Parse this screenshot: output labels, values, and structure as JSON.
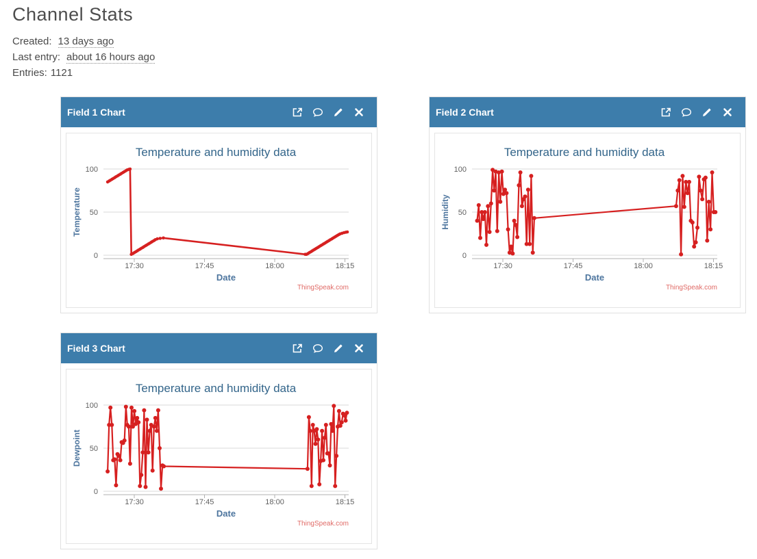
{
  "page": {
    "title": "Channel Stats",
    "created_label": "Created:",
    "created_value": "13 days ago",
    "last_entry_label": "Last entry:",
    "last_entry_value": "about 16 hours ago",
    "entries_label": "Entries:",
    "entries_value": "1121"
  },
  "panels": [
    {
      "title": "Field 1 Chart"
    },
    {
      "title": "Field 2 Chart"
    },
    {
      "title": "Field 3 Chart"
    }
  ],
  "toolbar_icon_names": [
    "external-link",
    "comment",
    "edit",
    "close"
  ],
  "chart_colors": {
    "header_blue": "#3d7dab",
    "title": "#33658a",
    "axis_title": "#4d759e",
    "tick_label": "#606060",
    "grid": "#d8d8d8",
    "axis_line": "#b0b0b0",
    "watermark": "#e06a66",
    "series": "#d62020"
  },
  "chart_data": [
    {
      "type": "line",
      "title": "Temperature and humidity data",
      "xlabel": "Date",
      "ylabel": "Temperature",
      "watermark": "ThingSpeak.com",
      "legend": false,
      "grid": true,
      "x_unit": "minutes after 17:20",
      "xlim": [
        3.4,
        55.8
      ],
      "ylim": [
        0,
        100
      ],
      "yticks": [
        0,
        50,
        100
      ],
      "xticks": [
        [
          10,
          "17:30"
        ],
        [
          25,
          "17:45"
        ],
        [
          40,
          "18:00"
        ],
        [
          55,
          "18:15"
        ]
      ],
      "color": "#d62020",
      "line_width": 2.6,
      "marker_radius": 2.3,
      "points": [
        [
          4.3,
          85
        ],
        [
          4.6,
          86
        ],
        [
          4.9,
          87
        ],
        [
          5.2,
          88
        ],
        [
          5.5,
          89
        ],
        [
          5.8,
          90
        ],
        [
          6.1,
          91
        ],
        [
          6.4,
          92
        ],
        [
          6.7,
          93
        ],
        [
          7.0,
          94
        ],
        [
          7.3,
          95
        ],
        [
          7.6,
          96
        ],
        [
          7.9,
          97
        ],
        [
          8.2,
          98
        ],
        [
          8.5,
          99
        ],
        [
          8.8,
          99.5
        ],
        [
          9.1,
          100
        ],
        [
          9.35,
          1
        ],
        [
          9.7,
          2
        ],
        [
          10.0,
          3
        ],
        [
          10.3,
          4
        ],
        [
          10.6,
          5
        ],
        [
          10.9,
          6
        ],
        [
          11.2,
          7
        ],
        [
          11.5,
          8
        ],
        [
          11.8,
          9
        ],
        [
          12.1,
          10
        ],
        [
          12.4,
          11
        ],
        [
          12.7,
          12
        ],
        [
          13.0,
          13
        ],
        [
          13.3,
          14
        ],
        [
          13.6,
          15
        ],
        [
          13.9,
          16
        ],
        [
          14.2,
          17
        ],
        [
          14.5,
          18
        ],
        [
          14.9,
          19
        ],
        [
          15.5,
          19.5
        ],
        [
          16.2,
          20
        ],
        [
          46.5,
          1
        ],
        [
          46.8,
          1
        ],
        [
          47.1,
          2
        ],
        [
          47.4,
          3
        ],
        [
          47.7,
          4
        ],
        [
          48.0,
          5
        ],
        [
          48.3,
          6
        ],
        [
          48.6,
          7
        ],
        [
          48.9,
          8
        ],
        [
          49.2,
          9
        ],
        [
          49.5,
          10
        ],
        [
          49.8,
          11
        ],
        [
          50.1,
          12
        ],
        [
          50.4,
          13
        ],
        [
          50.7,
          14
        ],
        [
          51.0,
          15
        ],
        [
          51.3,
          16
        ],
        [
          51.6,
          17
        ],
        [
          51.9,
          18
        ],
        [
          52.2,
          19
        ],
        [
          52.5,
          20
        ],
        [
          52.8,
          21
        ],
        [
          53.1,
          22
        ],
        [
          53.4,
          23
        ],
        [
          53.7,
          24
        ],
        [
          54.0,
          24.8
        ],
        [
          54.4,
          25.5
        ],
        [
          54.8,
          26.2
        ],
        [
          55.2,
          26.7
        ],
        [
          55.5,
          27
        ]
      ]
    },
    {
      "type": "line",
      "title": "Temperature and humidity data",
      "xlabel": "Date",
      "ylabel": "Humidity",
      "watermark": "ThingSpeak.com",
      "legend": false,
      "grid": true,
      "x_unit": "minutes after 17:20",
      "xlim": [
        3.4,
        55.8
      ],
      "ylim": [
        0,
        100
      ],
      "yticks": [
        0,
        50,
        100
      ],
      "xticks": [
        [
          10,
          "17:30"
        ],
        [
          25,
          "17:45"
        ],
        [
          40,
          "18:00"
        ],
        [
          55,
          "18:15"
        ]
      ],
      "color": "#d62020",
      "line_width": 2.2,
      "marker_radius": 3.0,
      "points": [
        [
          4.5,
          40
        ],
        [
          4.83,
          58
        ],
        [
          5.16,
          20
        ],
        [
          5.49,
          50
        ],
        [
          5.82,
          42
        ],
        [
          6.15,
          50
        ],
        [
          6.48,
          12
        ],
        [
          6.81,
          57
        ],
        [
          7.14,
          27
        ],
        [
          7.47,
          60
        ],
        [
          7.8,
          99
        ],
        [
          8.13,
          75
        ],
        [
          8.46,
          97
        ],
        [
          8.79,
          28
        ],
        [
          9.12,
          96
        ],
        [
          9.45,
          62
        ],
        [
          9.78,
          97
        ],
        [
          10.11,
          71
        ],
        [
          10.44,
          76
        ],
        [
          10.77,
          72
        ],
        [
          11.1,
          30
        ],
        [
          11.43,
          3
        ],
        [
          11.76,
          10
        ],
        [
          12.09,
          2
        ],
        [
          12.42,
          40
        ],
        [
          12.75,
          35
        ],
        [
          13.08,
          21
        ],
        [
          13.41,
          81
        ],
        [
          13.74,
          96
        ],
        [
          14.07,
          57
        ],
        [
          14.4,
          65
        ],
        [
          14.73,
          68
        ],
        [
          15.06,
          13
        ],
        [
          15.39,
          76
        ],
        [
          15.72,
          13
        ],
        [
          16.05,
          92
        ],
        [
          16.38,
          3
        ],
        [
          16.71,
          43
        ],
        [
          47.0,
          57
        ],
        [
          47.35,
          75
        ],
        [
          47.7,
          87
        ],
        [
          48.05,
          1
        ],
        [
          48.4,
          92
        ],
        [
          48.75,
          56
        ],
        [
          49.1,
          85
        ],
        [
          49.45,
          72
        ],
        [
          49.8,
          85
        ],
        [
          50.15,
          40
        ],
        [
          50.5,
          38
        ],
        [
          50.85,
          10
        ],
        [
          51.2,
          15
        ],
        [
          51.55,
          32
        ],
        [
          51.9,
          91
        ],
        [
          52.25,
          75
        ],
        [
          52.6,
          65
        ],
        [
          52.95,
          88
        ],
        [
          53.3,
          90
        ],
        [
          53.65,
          17
        ],
        [
          54.0,
          62
        ],
        [
          54.35,
          30
        ],
        [
          54.7,
          96
        ],
        [
          55.05,
          50
        ],
        [
          55.4,
          50
        ]
      ]
    },
    {
      "type": "line",
      "title": "Temperature and humidity data",
      "xlabel": "Date",
      "ylabel": "Dewpoint",
      "watermark": "ThingSpeak.com",
      "legend": false,
      "grid": true,
      "x_unit": "minutes after 17:20",
      "xlim": [
        3.4,
        55.8
      ],
      "ylim": [
        0,
        100
      ],
      "yticks": [
        0,
        50,
        100
      ],
      "xticks": [
        [
          10,
          "17:30"
        ],
        [
          25,
          "17:45"
        ],
        [
          40,
          "18:00"
        ],
        [
          55,
          "18:15"
        ]
      ],
      "color": "#d62020",
      "line_width": 2.2,
      "marker_radius": 3.0,
      "points": [
        [
          4.3,
          23
        ],
        [
          4.6,
          77
        ],
        [
          4.9,
          97
        ],
        [
          5.2,
          77
        ],
        [
          5.5,
          36
        ],
        [
          5.8,
          37
        ],
        [
          6.1,
          7
        ],
        [
          6.4,
          43
        ],
        [
          6.7,
          41
        ],
        [
          7.0,
          36
        ],
        [
          7.3,
          57
        ],
        [
          7.6,
          56
        ],
        [
          7.9,
          59
        ],
        [
          8.2,
          98
        ],
        [
          8.5,
          77
        ],
        [
          8.8,
          75
        ],
        [
          9.1,
          32
        ],
        [
          9.4,
          97
        ],
        [
          9.7,
          75
        ],
        [
          10.0,
          93
        ],
        [
          10.3,
          78
        ],
        [
          10.6,
          85
        ],
        [
          10.9,
          80
        ],
        [
          11.2,
          6
        ],
        [
          11.5,
          19
        ],
        [
          11.8,
          45
        ],
        [
          12.1,
          94
        ],
        [
          12.4,
          5
        ],
        [
          12.7,
          83
        ],
        [
          13.0,
          45
        ],
        [
          13.3,
          70
        ],
        [
          13.6,
          77
        ],
        [
          13.9,
          24
        ],
        [
          14.2,
          75
        ],
        [
          14.5,
          85
        ],
        [
          14.8,
          70
        ],
        [
          15.1,
          94
        ],
        [
          15.4,
          50
        ],
        [
          15.7,
          3
        ],
        [
          16.0,
          30
        ],
        [
          16.3,
          29
        ],
        [
          47.0,
          26
        ],
        [
          47.3,
          86
        ],
        [
          47.58,
          70
        ],
        [
          47.86,
          6
        ],
        [
          48.14,
          77
        ],
        [
          48.42,
          70
        ],
        [
          48.7,
          55
        ],
        [
          48.98,
          72
        ],
        [
          49.26,
          60
        ],
        [
          49.54,
          8
        ],
        [
          49.82,
          35
        ],
        [
          50.1,
          70
        ],
        [
          50.38,
          36
        ],
        [
          50.66,
          62
        ],
        [
          50.94,
          77
        ],
        [
          51.22,
          44
        ],
        [
          51.5,
          44
        ],
        [
          51.78,
          30
        ],
        [
          52.06,
          78
        ],
        [
          52.34,
          70
        ],
        [
          52.62,
          99
        ],
        [
          52.9,
          6
        ],
        [
          53.18,
          41
        ],
        [
          53.46,
          75
        ],
        [
          53.74,
          93
        ],
        [
          54.02,
          76
        ],
        [
          54.3,
          80
        ],
        [
          54.58,
          90
        ],
        [
          54.86,
          88
        ],
        [
          55.14,
          82
        ],
        [
          55.42,
          91
        ]
      ]
    }
  ]
}
